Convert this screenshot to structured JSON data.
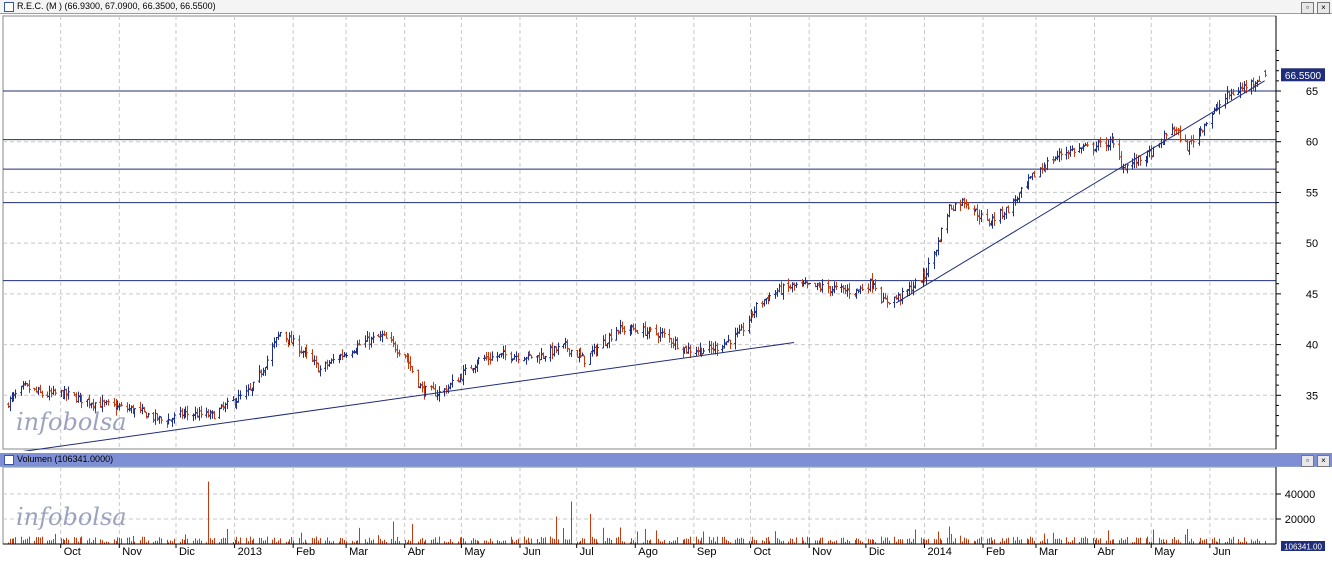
{
  "price_panel": {
    "title": "R.E.C. (M ) (66.9300, 67.0900, 66.3500, 66.5500)",
    "last_value_label": "66.5500",
    "watermark": "infobolsa",
    "buttons": [
      "restore",
      "close"
    ]
  },
  "volume_panel": {
    "title": "Volumen (106341.0000)",
    "last_value_label": "106341.00",
    "watermark": "infobolsa",
    "buttons": [
      "restore",
      "close"
    ]
  },
  "colors": {
    "up_bar": "#1c2f8a",
    "down_bar": "#c43a10",
    "volume_bar": "#c43a10",
    "trendline": "#1f2d7a",
    "horizontal_line": "#1f2d7a",
    "last_label_bg": "#1f2d7a",
    "grid": "#c8c8c8"
  },
  "chart_data": [
    {
      "type": "ohlc",
      "title": "R.E.C. (M ) (66.9300, 67.0900, 66.3500, 66.5500)",
      "y_ticks": [
        35,
        40,
        45,
        50,
        55,
        60,
        65
      ],
      "ylim": [
        30,
        72
      ],
      "grid": true,
      "last": {
        "open": 66.93,
        "high": 67.09,
        "low": 66.35,
        "close": 66.55
      },
      "horizontal_levels": [
        65.0,
        60.2,
        57.3,
        54.0,
        46.3
      ],
      "trendlines": [
        {
          "from": [
            "2012-09-01",
            29.2
          ],
          "to": [
            "2013-10-24",
            40.2
          ]
        },
        {
          "from": [
            "2013-12-17",
            44.1
          ],
          "to": [
            "2014-06-30",
            66.0
          ]
        }
      ],
      "series_points": [
        [
          "2012-09-01",
          34.0
        ],
        [
          "2012-09-12",
          35.8
        ],
        [
          "2012-09-22",
          35.0
        ],
        [
          "2012-10-01",
          35.2
        ],
        [
          "2012-10-20",
          34.2
        ],
        [
          "2012-11-10",
          33.5
        ],
        [
          "2012-11-25",
          32.4
        ],
        [
          "2012-12-05",
          33.2
        ],
        [
          "2012-12-20",
          33.0
        ],
        [
          "2013-01-01",
          34.5
        ],
        [
          "2013-01-10",
          35.5
        ],
        [
          "2013-01-18",
          38.5
        ],
        [
          "2013-01-25",
          41.2
        ],
        [
          "2013-02-05",
          39.5
        ],
        [
          "2013-02-15",
          37.5
        ],
        [
          "2013-02-25",
          38.8
        ],
        [
          "2013-03-10",
          40.2
        ],
        [
          "2013-03-20",
          40.8
        ],
        [
          "2013-04-01",
          39.0
        ],
        [
          "2013-04-10",
          35.5
        ],
        [
          "2013-04-20",
          35.2
        ],
        [
          "2013-04-30",
          36.8
        ],
        [
          "2013-05-10",
          38.5
        ],
        [
          "2013-05-25",
          39.0
        ],
        [
          "2013-06-10",
          38.8
        ],
        [
          "2013-06-25",
          39.8
        ],
        [
          "2013-07-05",
          38.5
        ],
        [
          "2013-07-15",
          40.2
        ],
        [
          "2013-07-22",
          41.5
        ],
        [
          "2013-08-01",
          41.5
        ],
        [
          "2013-08-15",
          41.0
        ],
        [
          "2013-08-28",
          39.5
        ],
        [
          "2013-09-10",
          39.5
        ],
        [
          "2013-09-25",
          41.0
        ],
        [
          "2013-10-05",
          44.0
        ],
        [
          "2013-10-15",
          45.3
        ],
        [
          "2013-10-25",
          45.8
        ],
        [
          "2013-11-10",
          45.6
        ],
        [
          "2013-11-25",
          45.2
        ],
        [
          "2013-12-05",
          46.2
        ],
        [
          "2013-12-10",
          44.2
        ],
        [
          "2013-12-20",
          44.8
        ],
        [
          "2014-01-01",
          46.8
        ],
        [
          "2014-01-08",
          50.0
        ],
        [
          "2014-01-14",
          53.5
        ],
        [
          "2014-01-22",
          54.2
        ],
        [
          "2014-02-03",
          52.0
        ],
        [
          "2014-02-15",
          53.5
        ],
        [
          "2014-03-01",
          57.0
        ],
        [
          "2014-03-15",
          59.0
        ],
        [
          "2014-04-01",
          59.5
        ],
        [
          "2014-04-10",
          60.0
        ],
        [
          "2014-04-16",
          57.5
        ],
        [
          "2014-04-28",
          58.5
        ],
        [
          "2014-05-05",
          59.5
        ],
        [
          "2014-05-12",
          61.5
        ],
        [
          "2014-05-20",
          59.5
        ],
        [
          "2014-06-01",
          62.5
        ],
        [
          "2014-06-10",
          64.5
        ],
        [
          "2014-06-20",
          65.5
        ],
        [
          "2014-06-30",
          66.55
        ]
      ]
    },
    {
      "type": "bar",
      "title": "Volumen (106341.0000)",
      "y_ticks": [
        20000,
        40000
      ],
      "ylim": [
        0,
        60000
      ],
      "grid": true,
      "x_tick_labels": [
        "Oct",
        "Nov",
        "Dic",
        "2013",
        "Feb",
        "Mar",
        "Abr",
        "May",
        "Jun",
        "Jul",
        "Ago",
        "Sep",
        "Oct",
        "Nov",
        "Dic",
        "2014",
        "Feb",
        "Mar",
        "Abr",
        "May",
        "Jun"
      ],
      "x_tick_dates": [
        "2012-10-01",
        "2012-11-01",
        "2012-12-01",
        "2013-01-01",
        "2013-02-01",
        "2013-03-01",
        "2013-04-01",
        "2013-05-01",
        "2013-06-01",
        "2013-07-01",
        "2013-08-01",
        "2013-09-01",
        "2013-10-01",
        "2013-11-01",
        "2013-12-01",
        "2014-01-01",
        "2014-02-01",
        "2014-03-01",
        "2014-04-01",
        "2014-05-01",
        "2014-06-01"
      ],
      "baseline_volume": 4000,
      "spikes": [
        [
          "2012-12-18",
          50000
        ],
        [
          "2012-12-28",
          12000
        ],
        [
          "2013-01-26",
          14000
        ],
        [
          "2013-02-05",
          9000
        ],
        [
          "2013-03-26",
          18000
        ],
        [
          "2013-04-05",
          16000
        ],
        [
          "2013-04-14",
          15000
        ],
        [
          "2013-06-15",
          14000
        ],
        [
          "2013-06-20",
          22000
        ],
        [
          "2013-06-28",
          34000
        ],
        [
          "2013-07-08",
          24000
        ],
        [
          "2013-07-15",
          13000
        ],
        [
          "2013-08-02",
          10000
        ],
        [
          "2014-01-14",
          14000
        ],
        [
          "2014-01-08",
          10000
        ],
        [
          "2014-03-10",
          9000
        ]
      ]
    }
  ]
}
